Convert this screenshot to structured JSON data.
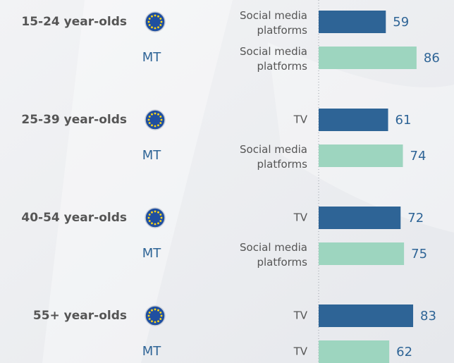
{
  "chart_data": {
    "type": "bar",
    "categories": [
      "15-24 year-olds",
      "25-39 year-olds",
      "40-54 year-olds",
      "55+ year-olds"
    ],
    "series": [
      {
        "color": "#2e6496",
        "media": [
          "Social media platforms",
          "TV",
          "TV",
          "TV"
        ],
        "values": [
          59,
          61,
          72,
          83
        ]
      },
      {
        "name": "MT",
        "color": "#9dd5bf",
        "media": [
          "Social media platforms",
          "Social media platforms",
          "Social media platforms",
          "TV"
        ],
        "values": [
          86,
          74,
          75,
          62
        ]
      }
    ]
  }
}
